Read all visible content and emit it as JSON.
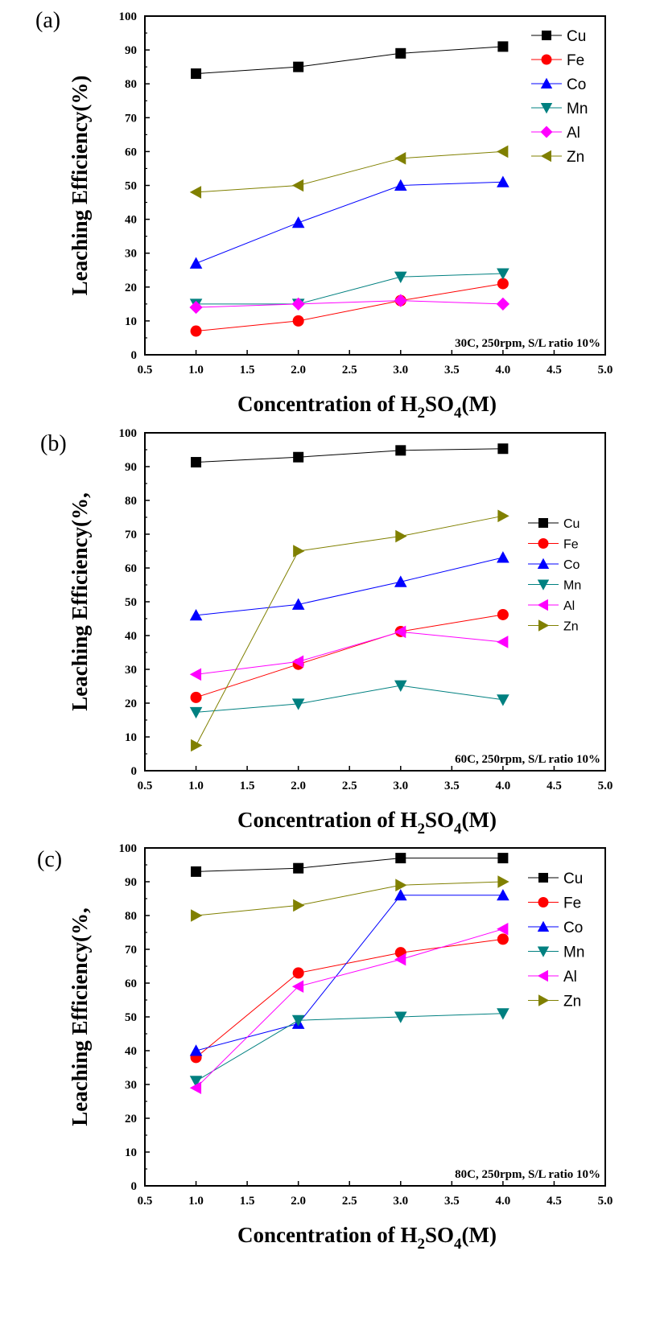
{
  "chart_data": [
    {
      "type": "line",
      "panel_label": "(a)",
      "condition": "30C, 250rpm, S/L ratio 10%",
      "xlabel": "Concentration of H2SO4(M)",
      "xlabel_parts": {
        "pre": "Concentration of H",
        "sub1": "2",
        "mid": "SO",
        "sub2": "4",
        "post": "(M)"
      },
      "ylabel": "Leaching Efficiency(%)",
      "x": [
        1.0,
        2.0,
        3.0,
        4.0
      ],
      "xlim": [
        0.5,
        5.0
      ],
      "ylim": [
        0,
        100
      ],
      "xticks": [
        "0.5",
        "1.0",
        "1.5",
        "2.0",
        "2.5",
        "3.0",
        "3.5",
        "4.0",
        "4.5",
        "5.0"
      ],
      "yticks": [
        "0",
        "10",
        "20",
        "30",
        "40",
        "50",
        "60",
        "70",
        "80",
        "90",
        "100"
      ],
      "legend_position": "top-right",
      "series": [
        {
          "name": "Cu",
          "marker": "square",
          "color": "#000000",
          "values": [
            83,
            85,
            89,
            91
          ]
        },
        {
          "name": "Fe",
          "marker": "circle",
          "color": "#ff0000",
          "values": [
            7,
            10,
            16,
            21
          ]
        },
        {
          "name": "Co",
          "marker": "triangle-up",
          "color": "#0000ff",
          "values": [
            27,
            39,
            50,
            51
          ]
        },
        {
          "name": "Mn",
          "marker": "triangle-down",
          "color": "#008080",
          "values": [
            15,
            15,
            23,
            24
          ]
        },
        {
          "name": "Al",
          "marker": "diamond",
          "color": "#ff00ff",
          "values": [
            14,
            15,
            16,
            15
          ]
        },
        {
          "name": "Zn",
          "marker": "triangle-left",
          "color": "#808000",
          "values": [
            48,
            50,
            58,
            60
          ]
        }
      ]
    },
    {
      "type": "line",
      "panel_label": "(b)",
      "condition": "60C, 250rpm, S/L ratio 10%",
      "xlabel": "Concentration of H2SO4(M)",
      "xlabel_parts": {
        "pre": "Concentration of H",
        "sub1": "2",
        "mid": "SO",
        "sub2": "4",
        "post": "(M)"
      },
      "ylabel": "Leaching Efficiency(%,",
      "x": [
        1.0,
        2.0,
        3.0,
        4.0
      ],
      "xlim": [
        0.5,
        5.0
      ],
      "ylim": [
        0,
        100
      ],
      "xticks": [
        "0.5",
        "1.0",
        "1.5",
        "2.0",
        "2.5",
        "3.0",
        "3.5",
        "4.0",
        "4.5",
        "5.0"
      ],
      "yticks": [
        "0",
        "10",
        "20",
        "30",
        "40",
        "50",
        "60",
        "70",
        "80",
        "90",
        "100"
      ],
      "legend_position": "right",
      "series": [
        {
          "name": "Cu",
          "marker": "square",
          "color": "#000000",
          "values": [
            91.3,
            92.8,
            94.8,
            95.3
          ]
        },
        {
          "name": "Fe",
          "marker": "circle",
          "color": "#ff0000",
          "values": [
            21.7,
            31.5,
            41.2,
            46.2
          ]
        },
        {
          "name": "Co",
          "marker": "triangle-up",
          "color": "#0000ff",
          "values": [
            46,
            49.2,
            55.9,
            63.1
          ]
        },
        {
          "name": "Mn",
          "marker": "triangle-down",
          "color": "#008080",
          "values": [
            17.3,
            19.8,
            25.2,
            21
          ]
        },
        {
          "name": "Al",
          "marker": "triangle-left",
          "color": "#ff00ff",
          "values": [
            28.5,
            32.3,
            41.1,
            38.1
          ]
        },
        {
          "name": "Zn",
          "marker": "triangle-right",
          "color": "#808000",
          "values": [
            7.5,
            65,
            69.4,
            75.4
          ]
        }
      ]
    },
    {
      "type": "line",
      "panel_label": "(c)",
      "condition": "80C, 250rpm, S/L ratio 10%",
      "xlabel": "Concentration of H2SO4(M)",
      "xlabel_parts": {
        "pre": "Concentration of H",
        "sub1": "2",
        "mid": "SO",
        "sub2": "4",
        "post": "(M)"
      },
      "ylabel": "Leaching Efficiency(%,",
      "x": [
        1.0,
        2.0,
        3.0,
        4.0
      ],
      "xlim": [
        0.5,
        5.0
      ],
      "ylim": [
        0,
        100
      ],
      "xticks": [
        "0.5",
        "1.0",
        "1.5",
        "2.0",
        "2.5",
        "3.0",
        "3.5",
        "4.0",
        "4.5",
        "5.0"
      ],
      "yticks": [
        "0",
        "10",
        "20",
        "30",
        "40",
        "50",
        "60",
        "70",
        "80",
        "90",
        "100"
      ],
      "legend_position": "right",
      "series": [
        {
          "name": "Cu",
          "marker": "square",
          "color": "#000000",
          "values": [
            93,
            94,
            97,
            97
          ]
        },
        {
          "name": "Fe",
          "marker": "circle",
          "color": "#ff0000",
          "values": [
            38,
            63,
            69,
            73
          ]
        },
        {
          "name": "Co",
          "marker": "triangle-up",
          "color": "#0000ff",
          "values": [
            40,
            48,
            86,
            86
          ]
        },
        {
          "name": "Mn",
          "marker": "triangle-down",
          "color": "#008080",
          "values": [
            31,
            49,
            50,
            51
          ]
        },
        {
          "name": "Al",
          "marker": "triangle-left",
          "color": "#ff00ff",
          "values": [
            29,
            59,
            67,
            76
          ]
        },
        {
          "name": "Zn",
          "marker": "triangle-right",
          "color": "#808000",
          "values": [
            80,
            83,
            89,
            90
          ]
        }
      ]
    }
  ]
}
